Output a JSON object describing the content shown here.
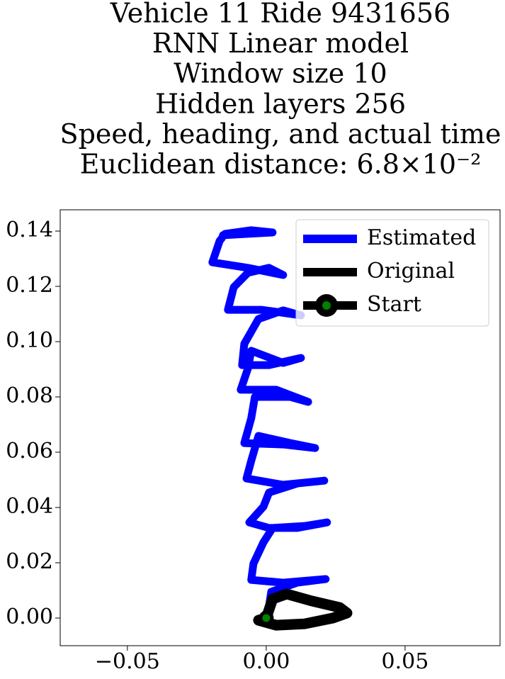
{
  "chart_data": {
    "type": "line",
    "title": [
      "Vehicle 11 Ride 9431656",
      "RNN Linear model",
      "Window size 10",
      "Hidden layers 256",
      "Speed, heading, and actual time",
      "Euclidean distance: 6.8×10⁻²"
    ],
    "xlim": [
      -0.0742,
      0.0842
    ],
    "ylim": [
      -0.01,
      0.1477
    ],
    "xticks": [
      {
        "value": -0.05,
        "label": "−0.05"
      },
      {
        "value": 0,
        "label": "0.00"
      },
      {
        "value": 0.05,
        "label": "0.05"
      }
    ],
    "yticks": [
      {
        "value": 0,
        "label": "0.00"
      },
      {
        "value": 0.02,
        "label": "0.02"
      },
      {
        "value": 0.04,
        "label": "0.04"
      },
      {
        "value": 0.06,
        "label": "0.06"
      },
      {
        "value": 0.08,
        "label": "0.08"
      },
      {
        "value": 0.1,
        "label": "0.10"
      },
      {
        "value": 0.12,
        "label": "0.12"
      },
      {
        "value": 0.14,
        "label": "0.14"
      }
    ],
    "legend": "upper right",
    "series": [
      {
        "name": "Estimated",
        "color": "#0000ff",
        "x": [
          0.0005,
          0.0018,
          0.0112,
          0.0214,
          0.0061,
          -0.0054,
          -0.0046,
          -0.001,
          0.0023,
          0.0138,
          0.0219,
          0.0112,
          0.001,
          -0.0061,
          -0.001,
          0.001,
          0.0112,
          0.0209,
          0.0061,
          -0.0071,
          -0.0054,
          -0.0028,
          0.0087,
          0.0176,
          0.0061,
          -0.0079,
          -0.0054,
          -0.0041,
          0.0087,
          0.0151,
          0.0036,
          -0.0092,
          -0.0066,
          -0.0054,
          0.0061,
          0.0125,
          0.001,
          -0.0087,
          -0.0079,
          -0.0028,
          0.0061,
          0.0125,
          -0.0015,
          -0.0138,
          -0.0117,
          -0.0066,
          0.001,
          0.0061,
          -0.0066,
          -0.0194,
          -0.0168,
          -0.0148,
          -0.0054,
          0.0023,
          -0.0066,
          -0.0156
        ],
        "y": [
          0.001,
          0.0095,
          0.0128,
          0.0141,
          0.0128,
          0.0138,
          0.0197,
          0.0274,
          0.0326,
          0.0333,
          0.0346,
          0.0326,
          0.0326,
          0.0346,
          0.0403,
          0.0454,
          0.0487,
          0.0497,
          0.0482,
          0.0505,
          0.0569,
          0.0659,
          0.0633,
          0.0615,
          0.0628,
          0.0633,
          0.0723,
          0.08,
          0.08,
          0.0782,
          0.0826,
          0.0826,
          0.0903,
          0.0967,
          0.0923,
          0.0941,
          0.0915,
          0.0915,
          0.0992,
          0.1082,
          0.1113,
          0.1095,
          0.1115,
          0.1115,
          0.1197,
          0.1249,
          0.1267,
          0.1241,
          0.1267,
          0.1287,
          0.1364,
          0.139,
          0.1403,
          0.1395,
          0.139,
          0.1385
        ]
      },
      {
        "name": "Original",
        "color": "#000000",
        "x": [
          0,
          0.0023,
          0.0074,
          0.0163,
          0.0265,
          0.0291,
          0.024,
          0.0138,
          0.0036,
          -0.0028,
          0
        ],
        "y": [
          0,
          0.0069,
          0.0087,
          0.0062,
          0.0038,
          0.0018,
          0,
          -0.0021,
          -0.0026,
          -0.0008,
          0
        ]
      },
      {
        "name": "Start",
        "color": "#000000",
        "marker_color": "#008000",
        "x": [
          0
        ],
        "y": [
          0
        ]
      }
    ]
  }
}
